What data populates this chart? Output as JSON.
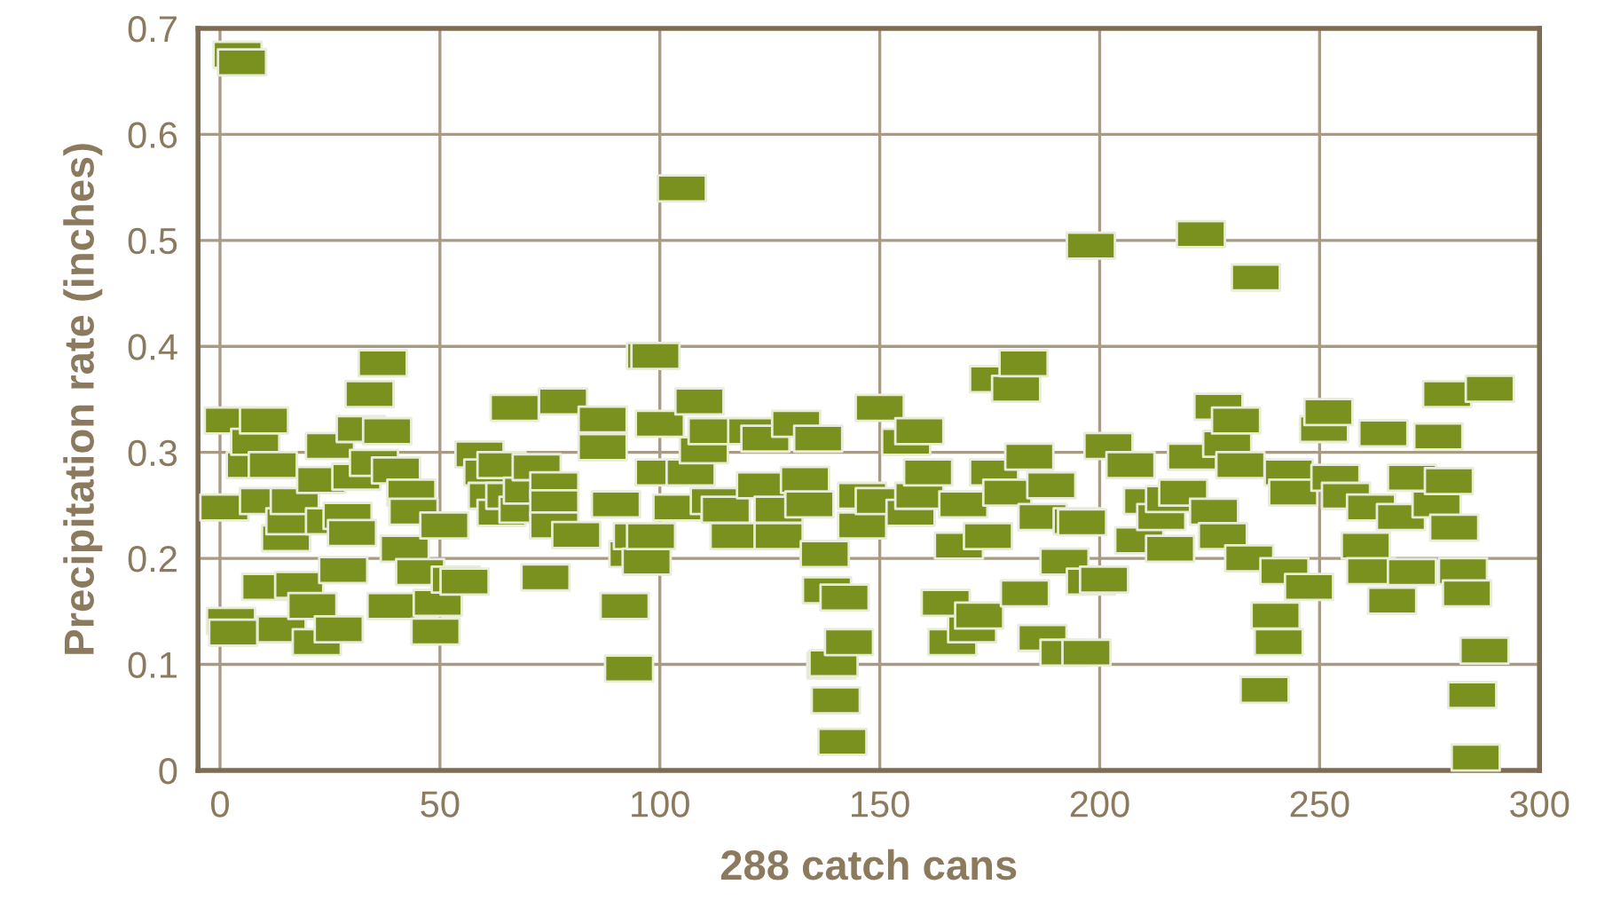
{
  "chart_data": {
    "type": "scatter",
    "xlabel": "288 catch cans",
    "ylabel": "Precipitation rate (inches)",
    "xlim": [
      -5,
      300
    ],
    "ylim": [
      0,
      0.7
    ],
    "xticks": [
      0,
      50,
      100,
      150,
      200,
      250,
      300
    ],
    "yticks": [
      0,
      0.1,
      0.2,
      0.3,
      0.4,
      0.5,
      0.6,
      0.7
    ],
    "grid": true,
    "marker": "square",
    "series": [
      {
        "color": "#7a9120",
        "x": [
          1,
          2,
          2.5,
          3,
          4,
          5,
          7,
          8,
          10,
          10,
          10.5,
          12,
          14,
          15,
          16,
          17,
          18,
          21,
          22,
          23,
          25,
          25,
          27,
          28,
          29,
          30,
          31,
          32,
          34,
          35,
          37,
          38,
          39,
          40,
          42,
          43.5,
          44,
          45.5,
          49,
          49.5,
          51,
          53.6,
          55.6,
          59,
          61,
          62,
          64,
          64,
          66,
          67,
          69,
          70,
          72,
          74,
          76,
          76,
          76,
          78,
          81,
          87,
          87,
          90,
          92,
          93,
          94,
          95,
          97,
          98,
          98,
          99,
          100,
          100,
          104,
          105,
          107,
          109,
          110,
          112,
          112.5,
          115,
          117,
          121,
          123,
          124,
          127,
          127,
          131,
          133,
          134,
          136,
          137.5,
          138,
          139,
          139.5,
          140,
          141.5,
          142,
          143,
          146,
          146,
          150,
          150,
          156,
          157,
          159,
          159,
          161,
          165,
          166.5,
          168,
          169,
          171,
          172.6,
          174.6,
          176,
          176,
          179,
          181,
          182.7,
          183,
          184,
          187,
          187,
          189,
          192,
          192,
          195,
          196,
          197,
          198,
          198,
          201,
          202,
          207,
          209,
          211,
          214,
          216,
          216,
          219,
          221,
          223,
          226,
          227,
          228,
          229,
          231,
          232,
          234,
          235.5,
          237.5,
          240,
          240.7,
          242,
          243,
          244,
          247.6,
          251,
          252,
          253.6,
          256,
          260.5,
          261.7,
          261.7,
          264.5,
          266.5,
          268.5,
          271,
          271,
          276.6,
          277,
          279,
          279.4,
          280.6,
          282.6,
          283.5,
          284.7,
          285.5,
          287.5,
          288.7
        ],
        "values": [
          0.248,
          0.33,
          0.141,
          0.13,
          0.675,
          0.668,
          0.288,
          0.31,
          0.33,
          0.254,
          0.173,
          0.288,
          0.133,
          0.219,
          0.235,
          0.254,
          0.175,
          0.155,
          0.121,
          0.274,
          0.306,
          0.235,
          0.133,
          0.189,
          0.24,
          0.224,
          0.277,
          0.322,
          0.355,
          0.29,
          0.384,
          0.32,
          0.155,
          0.283,
          0.209,
          0.262,
          0.244,
          0.187,
          0.131,
          0.158,
          0.231,
          0.18,
          0.178,
          0.298,
          0.281,
          0.259,
          0.288,
          0.243,
          0.259,
          0.342,
          0.246,
          0.264,
          0.286,
          0.182,
          0.269,
          0.252,
          0.231,
          0.348,
          0.222,
          0.331,
          0.305,
          0.251,
          0.155,
          0.096,
          0.204,
          0.221,
          0.197,
          0.391,
          0.221,
          0.391,
          0.327,
          0.281,
          0.248,
          0.549,
          0.281,
          0.348,
          0.302,
          0.32,
          0.254,
          0.246,
          0.221,
          0.32,
          0.269,
          0.313,
          0.246,
          0.221,
          0.327,
          0.274,
          0.251,
          0.313,
          0.204,
          0.17,
          0.099,
          0.101,
          0.066,
          0.027,
          0.163,
          0.121,
          0.259,
          0.231,
          0.342,
          0.254,
          0.31,
          0.243,
          0.32,
          0.259,
          0.281,
          0.158,
          0.121,
          0.212,
          0.251,
          0.133,
          0.146,
          0.221,
          0.369,
          0.281,
          0.262,
          0.36,
          0.384,
          0.167,
          0.296,
          0.239,
          0.125,
          0.269,
          0.197,
          0.111,
          0.235,
          0.234,
          0.111,
          0.495,
          0.178,
          0.18,
          0.306,
          0.288,
          0.217,
          0.254,
          0.239,
          0.256,
          0.209,
          0.262,
          0.296,
          0.506,
          0.244,
          0.343,
          0.221,
          0.308,
          0.33,
          0.288,
          0.2,
          0.465,
          0.076,
          0.146,
          0.121,
          0.188,
          0.281,
          0.262,
          0.173,
          0.322,
          0.338,
          0.276,
          0.259,
          0.212,
          0.248,
          0.188,
          0.318,
          0.16,
          0.239,
          0.276,
          0.187,
          0.251,
          0.315,
          0.355,
          0.273,
          0.229,
          0.188,
          0.167,
          0.071,
          0.012,
          0.113,
          0.36
        ]
      }
    ]
  }
}
